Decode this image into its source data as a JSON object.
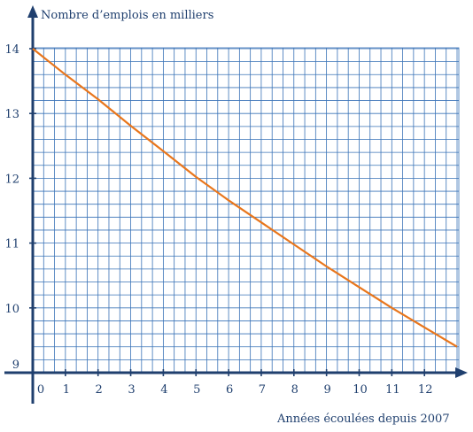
{
  "chart_data": {
    "type": "line",
    "ylabel": "Nombre d’emplois en milliers",
    "xlabel": "Années écoulées depuis 2007",
    "xlim": [
      0,
      13
    ],
    "ylim": [
      9,
      14
    ],
    "x_ticks": [
      0,
      1,
      2,
      3,
      4,
      5,
      6,
      7,
      8,
      9,
      10,
      11,
      12
    ],
    "y_ticks": [
      9,
      10,
      11,
      12,
      13,
      14
    ],
    "minor_grid_step_x": 0.3333,
    "minor_grid_step_y": 0.2,
    "grid": true,
    "series": [
      {
        "color": "#e8761c",
        "x": [
          0,
          1,
          2,
          3,
          4,
          5,
          6,
          7,
          8,
          9,
          10,
          11,
          12,
          13
        ],
        "y": [
          14.0,
          13.6,
          13.22,
          12.81,
          12.42,
          12.02,
          11.66,
          11.32,
          10.98,
          10.64,
          10.32,
          10.0,
          9.7,
          9.4
        ]
      }
    ],
    "colors": {
      "axis": "#1f3f6e",
      "grid": "#3a73b7",
      "line": "#e8761c"
    }
  }
}
